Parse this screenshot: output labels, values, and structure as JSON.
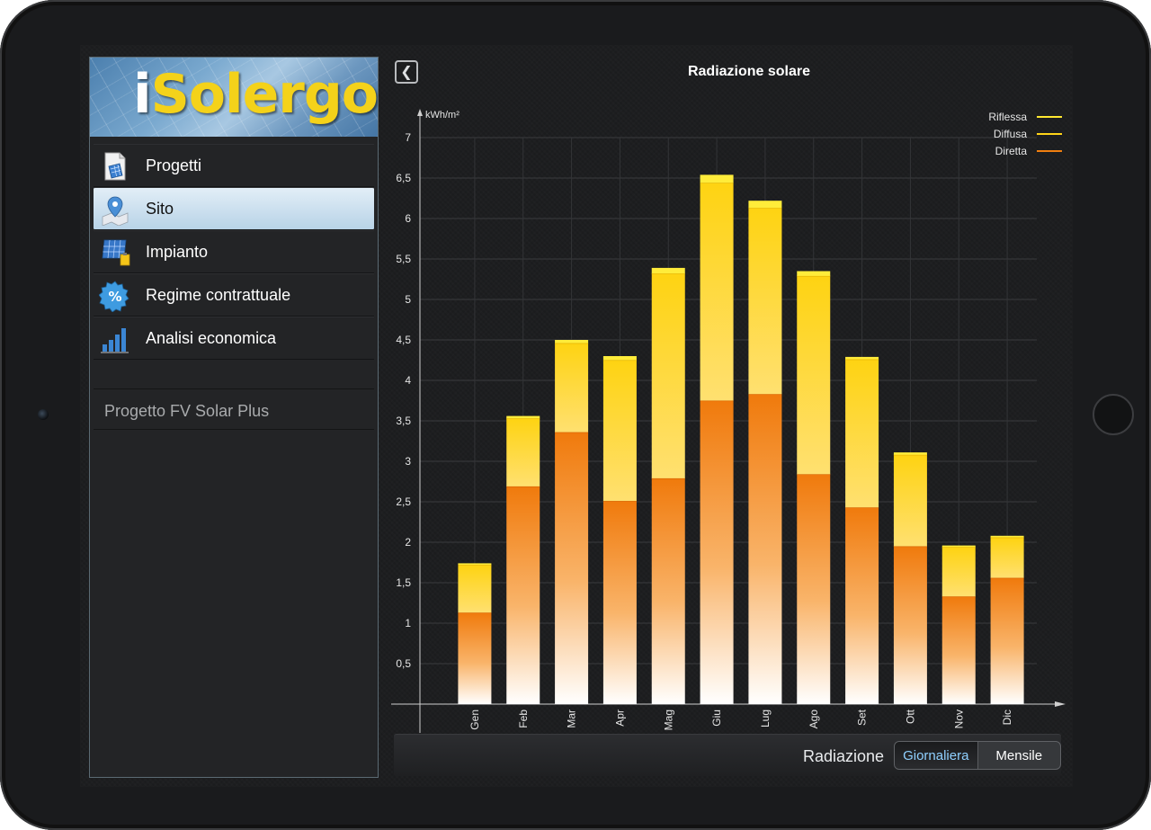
{
  "app": {
    "logo_i": "i",
    "logo_rest": "Solergo"
  },
  "sidebar": {
    "items": [
      {
        "label": "Progetti",
        "icon": "document-panel-icon",
        "active": false
      },
      {
        "label": "Sito",
        "icon": "map-pin-icon",
        "active": true
      },
      {
        "label": "Impianto",
        "icon": "solar-panel-icon",
        "active": false
      },
      {
        "label": "Regime contrattuale",
        "icon": "percent-badge-icon",
        "active": false
      },
      {
        "label": "Analisi economica",
        "icon": "bar-chart-icon",
        "active": false
      }
    ],
    "project_name": "Progetto FV Solar Plus"
  },
  "main": {
    "back_icon": "chevron-left-icon",
    "title": "Radiazione solare",
    "bottom": {
      "label": "Radiazione",
      "segments": [
        {
          "label": "Giornaliera",
          "selected": true
        },
        {
          "label": "Mensile",
          "selected": false
        }
      ]
    }
  },
  "chart_data": {
    "type": "bar",
    "stacked": true,
    "title": "Radiazione solare",
    "ylabel": "kWh/m²",
    "ylim": [
      0,
      7
    ],
    "yticks": [
      "0,5",
      "1",
      "1,5",
      "2",
      "2,5",
      "3",
      "3,5",
      "4",
      "4,5",
      "5",
      "5,5",
      "6",
      "6,5",
      "7"
    ],
    "categories": [
      "Gen",
      "Feb",
      "Mar",
      "Apr",
      "Mag",
      "Giu",
      "Lug",
      "Ago",
      "Set",
      "Ott",
      "Nov",
      "Dic"
    ],
    "series": [
      {
        "name": "Diretta",
        "color": "#f07f10",
        "values": [
          1.13,
          2.69,
          3.36,
          2.51,
          2.79,
          3.75,
          3.83,
          2.84,
          2.43,
          1.95,
          1.33,
          1.56
        ]
      },
      {
        "name": "Diffusa",
        "color": "#ffd418",
        "values": [
          0.59,
          0.84,
          1.1,
          1.74,
          2.53,
          2.69,
          2.3,
          2.45,
          1.83,
          1.13,
          0.61,
          0.5
        ]
      },
      {
        "name": "Riflessa",
        "color": "#ffe830",
        "values": [
          0.02,
          0.03,
          0.04,
          0.05,
          0.07,
          0.1,
          0.09,
          0.06,
          0.03,
          0.03,
          0.02,
          0.02
        ]
      }
    ],
    "legend": [
      "Riflessa",
      "Diffusa",
      "Diretta"
    ],
    "legend_position": "top-right",
    "grid": true
  }
}
